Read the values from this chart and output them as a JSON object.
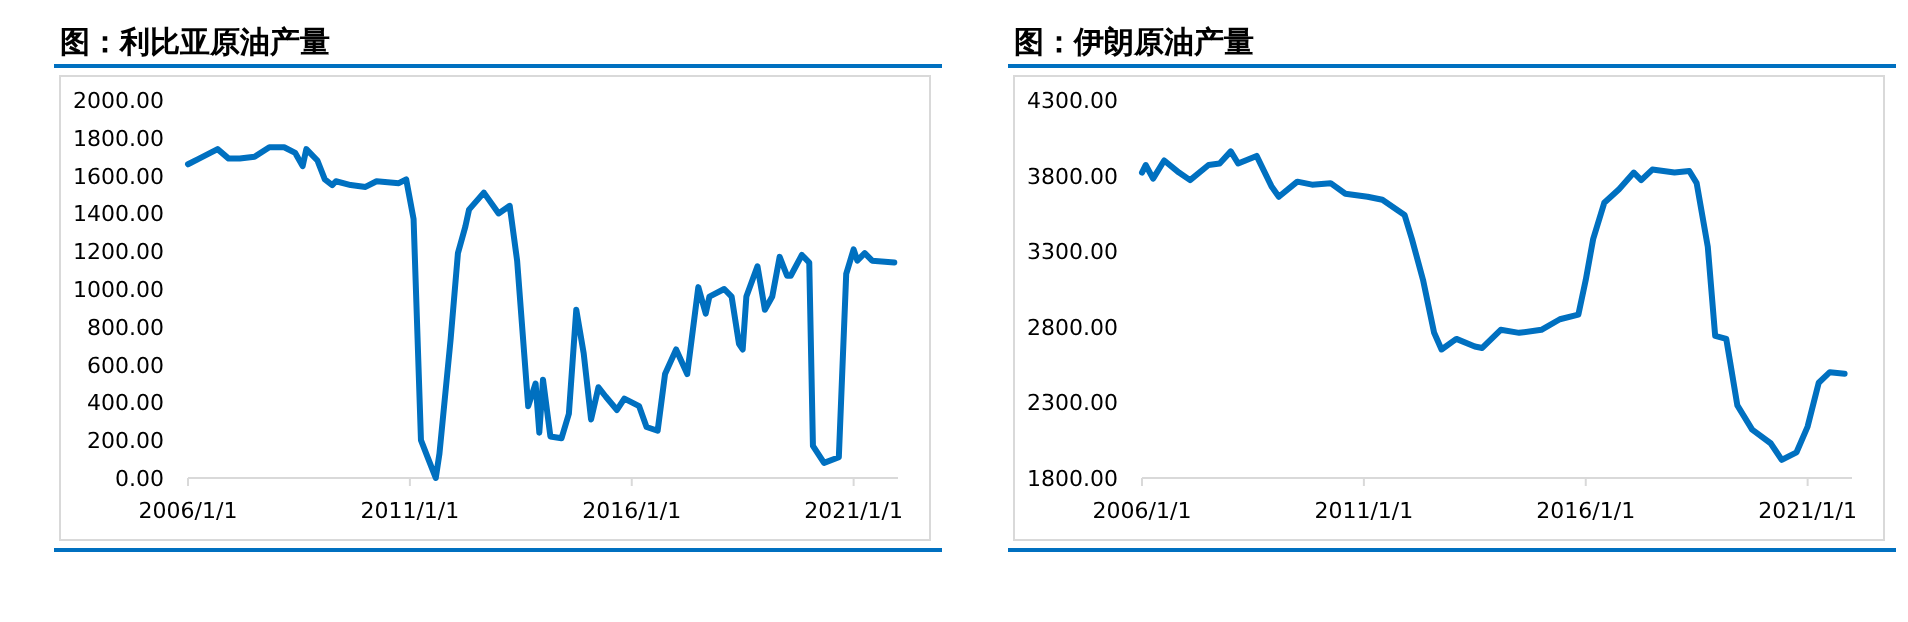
{
  "chart_data": [
    {
      "type": "line",
      "title": "图：利比亚原油产量",
      "grid": false,
      "marker": "none",
      "line_style": "solid",
      "xlim": [
        "2006-01-01",
        "2022-01-01"
      ],
      "xticks": [
        {
          "value": "2006-01-01",
          "label": "2006/1/1"
        },
        {
          "value": "2011-01-01",
          "label": "2011/1/1"
        },
        {
          "value": "2016-01-01",
          "label": "2016/1/1"
        },
        {
          "value": "2021-01-01",
          "label": "2021/1/1"
        }
      ],
      "ylim": [
        0,
        2000
      ],
      "yticks": [
        {
          "value": 0,
          "label": "0.00"
        },
        {
          "value": 200,
          "label": "200.00"
        },
        {
          "value": 400,
          "label": "400.00"
        },
        {
          "value": 600,
          "label": "600.00"
        },
        {
          "value": 800,
          "label": "800.00"
        },
        {
          "value": 1000,
          "label": "1000.00"
        },
        {
          "value": 1200,
          "label": "1200.00"
        },
        {
          "value": 1400,
          "label": "1400.00"
        },
        {
          "value": 1600,
          "label": "1600.00"
        },
        {
          "value": 1800,
          "label": "1800.00"
        },
        {
          "value": 2000,
          "label": "2000.00"
        }
      ],
      "series": [
        {
          "color": "#0070c0",
          "x": [
            "2006-01",
            "2006-04",
            "2006-09",
            "2006-12",
            "2007-03",
            "2007-07",
            "2007-11",
            "2008-03",
            "2008-06",
            "2008-08",
            "2008-09",
            "2008-12",
            "2009-02",
            "2009-04",
            "2009-05",
            "2009-09",
            "2010-01",
            "2010-04",
            "2010-10",
            "2010-12",
            "2011-02",
            "2011-04",
            "2011-06",
            "2011-08",
            "2011-09",
            "2011-12",
            "2012-02",
            "2012-04",
            "2012-05",
            "2012-09",
            "2013-01",
            "2013-04",
            "2013-06",
            "2013-09",
            "2013-11",
            "2013-12",
            "2014-01",
            "2014-03",
            "2014-06",
            "2014-08",
            "2014-10",
            "2014-12",
            "2015-02",
            "2015-04",
            "2015-06",
            "2015-09",
            "2015-11",
            "2016-03",
            "2016-05",
            "2016-08",
            "2016-10",
            "2017-01",
            "2017-04",
            "2017-07",
            "2017-09",
            "2017-10",
            "2018-02",
            "2018-04",
            "2018-06",
            "2018-07",
            "2018-08",
            "2018-11",
            "2019-01",
            "2019-03",
            "2019-05",
            "2019-07",
            "2019-08",
            "2019-11",
            "2020-01",
            "2020-02",
            "2020-05",
            "2020-09",
            "2020-11",
            "2021-01",
            "2021-02",
            "2021-04",
            "2021-06",
            "2021-12"
          ],
          "values": [
            1660,
            1690,
            1740,
            1690,
            1690,
            1700,
            1750,
            1750,
            1720,
            1650,
            1740,
            1680,
            1580,
            1550,
            1570,
            1550,
            1540,
            1570,
            1560,
            1580,
            1370,
            200,
            100,
            0,
            130,
            730,
            1190,
            1330,
            1420,
            1510,
            1400,
            1440,
            1150,
            380,
            500,
            240,
            520,
            220,
            210,
            340,
            890,
            660,
            310,
            480,
            430,
            360,
            420,
            380,
            270,
            250,
            550,
            680,
            550,
            1010,
            870,
            960,
            1000,
            960,
            710,
            680,
            960,
            1120,
            890,
            960,
            1170,
            1070,
            1070,
            1180,
            1140,
            170,
            80,
            110,
            1080,
            1210,
            1150,
            1190,
            1150,
            1140
          ]
        }
      ]
    },
    {
      "type": "line",
      "title": "图：伊朗原油产量",
      "grid": false,
      "marker": "none",
      "line_style": "solid",
      "xlim": [
        "2006-01-01",
        "2022-01-01"
      ],
      "xticks": [
        {
          "value": "2006-01-01",
          "label": "2006/1/1"
        },
        {
          "value": "2011-01-01",
          "label": "2011/1/1"
        },
        {
          "value": "2016-01-01",
          "label": "2016/1/1"
        },
        {
          "value": "2021-01-01",
          "label": "2021/1/1"
        }
      ],
      "ylim": [
        1800,
        4300
      ],
      "yticks": [
        {
          "value": 1800,
          "label": "1800.00"
        },
        {
          "value": 2300,
          "label": "2300.00"
        },
        {
          "value": 2800,
          "label": "2800.00"
        },
        {
          "value": 3300,
          "label": "3300.00"
        },
        {
          "value": 3800,
          "label": "3800.00"
        },
        {
          "value": 4300,
          "label": "4300.00"
        }
      ],
      "series": [
        {
          "color": "#0070c0",
          "x": [
            "2006-01",
            "2006-02",
            "2006-04",
            "2006-07",
            "2006-11",
            "2007-02",
            "2007-07",
            "2007-10",
            "2008-01",
            "2008-03",
            "2008-08",
            "2008-12",
            "2009-02",
            "2009-07",
            "2009-11",
            "2010-04",
            "2010-08",
            "2011-02",
            "2011-06",
            "2011-12",
            "2012-02",
            "2012-05",
            "2012-08",
            "2012-10",
            "2013-02",
            "2013-07",
            "2013-09",
            "2014-02",
            "2014-07",
            "2015-01",
            "2015-06",
            "2015-11",
            "2016-01",
            "2016-03",
            "2016-06",
            "2016-10",
            "2017-02",
            "2017-04",
            "2017-07",
            "2018-01",
            "2018-05",
            "2018-07",
            "2018-10",
            "2018-12",
            "2019-03",
            "2019-06",
            "2019-10",
            "2020-03",
            "2020-06",
            "2020-10",
            "2021-01",
            "2021-04",
            "2021-07",
            "2021-11"
          ],
          "values": [
            3820,
            3870,
            3780,
            3900,
            3820,
            3770,
            3870,
            3880,
            3960,
            3880,
            3930,
            3730,
            3660,
            3760,
            3740,
            3750,
            3680,
            3660,
            3640,
            3540,
            3380,
            3110,
            2760,
            2650,
            2720,
            2670,
            2660,
            2780,
            2760,
            2780,
            2850,
            2880,
            3110,
            3380,
            3620,
            3710,
            3820,
            3770,
            3840,
            3820,
            3830,
            3750,
            3330,
            2740,
            2720,
            2280,
            2120,
            2030,
            1920,
            1970,
            2140,
            2430,
            2500,
            2490
          ]
        }
      ]
    }
  ]
}
